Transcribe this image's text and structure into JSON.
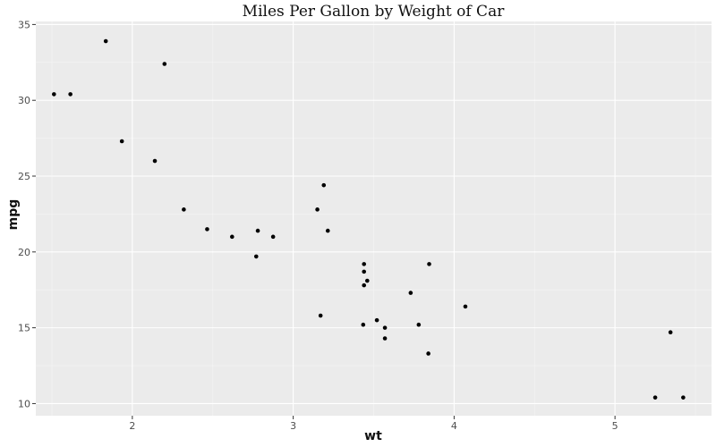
{
  "chart_data": {
    "type": "scatter",
    "title": "Miles Per Gallon by Weight of Car",
    "xlabel": "wt",
    "ylabel": "mpg",
    "xlim": [
      1.4,
      5.6
    ],
    "ylim": [
      9.2,
      35.2
    ],
    "x_ticks": [
      2,
      3,
      4,
      5
    ],
    "y_ticks": [
      10,
      15,
      20,
      25,
      30,
      35
    ],
    "x_tick_labels": [
      "2",
      "3",
      "4",
      "5"
    ],
    "y_tick_labels": [
      "10",
      "15",
      "20",
      "25",
      "30",
      "35"
    ],
    "grid": true,
    "background": "#ebebeb",
    "point_color": "#000000",
    "points": [
      {
        "x": 2.62,
        "y": 21.0
      },
      {
        "x": 2.875,
        "y": 21.0
      },
      {
        "x": 2.32,
        "y": 22.8
      },
      {
        "x": 3.215,
        "y": 21.4
      },
      {
        "x": 3.44,
        "y": 18.7
      },
      {
        "x": 3.46,
        "y": 18.1
      },
      {
        "x": 3.57,
        "y": 14.3
      },
      {
        "x": 3.19,
        "y": 24.4
      },
      {
        "x": 3.15,
        "y": 22.8
      },
      {
        "x": 3.44,
        "y": 19.2
      },
      {
        "x": 3.44,
        "y": 17.8
      },
      {
        "x": 4.07,
        "y": 16.4
      },
      {
        "x": 3.73,
        "y": 17.3
      },
      {
        "x": 3.78,
        "y": 15.2
      },
      {
        "x": 5.25,
        "y": 10.4
      },
      {
        "x": 5.424,
        "y": 10.4
      },
      {
        "x": 5.345,
        "y": 14.7
      },
      {
        "x": 2.2,
        "y": 32.4
      },
      {
        "x": 1.615,
        "y": 30.4
      },
      {
        "x": 1.835,
        "y": 33.9
      },
      {
        "x": 2.465,
        "y": 21.5
      },
      {
        "x": 3.52,
        "y": 15.5
      },
      {
        "x": 3.435,
        "y": 15.2
      },
      {
        "x": 3.84,
        "y": 13.3
      },
      {
        "x": 3.845,
        "y": 19.2
      },
      {
        "x": 1.935,
        "y": 27.3
      },
      {
        "x": 2.14,
        "y": 26.0
      },
      {
        "x": 1.513,
        "y": 30.4
      },
      {
        "x": 3.17,
        "y": 15.8
      },
      {
        "x": 2.77,
        "y": 19.7
      },
      {
        "x": 3.57,
        "y": 15.0
      },
      {
        "x": 2.78,
        "y": 21.4
      }
    ]
  }
}
